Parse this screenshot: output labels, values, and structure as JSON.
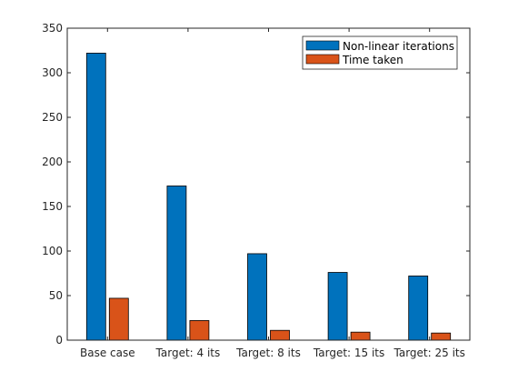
{
  "chart_data": {
    "type": "bar",
    "categories": [
      "Base case",
      "Target: 4 its",
      "Target: 8 its",
      "Target: 15 its",
      "Target: 25 its"
    ],
    "series": [
      {
        "name": "Non-linear iterations",
        "values": [
          322,
          173,
          97,
          76,
          72
        ],
        "color": "#0072BD"
      },
      {
        "name": "Time taken",
        "values": [
          47,
          22,
          11,
          9,
          8
        ],
        "color": "#D95319"
      }
    ],
    "title": "",
    "xlabel": "",
    "ylabel": "",
    "ylim": [
      0,
      350
    ],
    "yticks": [
      0,
      50,
      100,
      150,
      200,
      250,
      300,
      350
    ],
    "grid": false,
    "legend_position": "top-right"
  }
}
